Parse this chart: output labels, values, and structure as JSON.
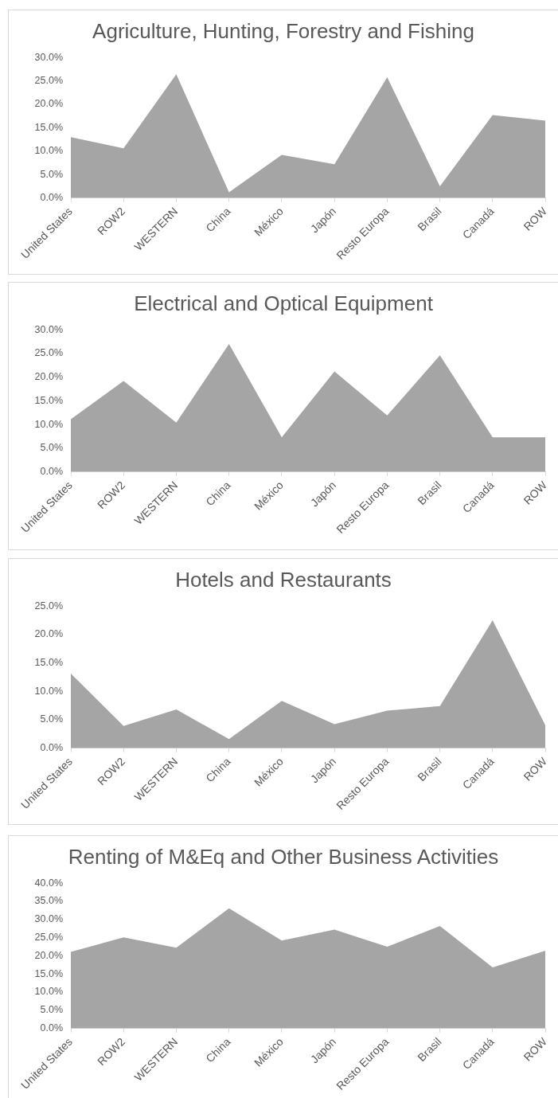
{
  "chart_data": [
    {
      "type": "area",
      "title": "Agriculture, Hunting, Forestry and Fishing",
      "categories": [
        "United States",
        "ROW2",
        "WESTERN",
        "China",
        "México",
        "Japón",
        "Resto Europa",
        "Brasil",
        "Canadá",
        "ROW"
      ],
      "values": [
        13.0,
        10.6,
        26.4,
        1.2,
        9.2,
        7.2,
        25.8,
        2.5,
        17.7,
        16.5
      ],
      "color": "#a5a5a5",
      "ylim": [
        0,
        30
      ],
      "yticks": [
        {
          "value": 0,
          "label": "0.0%"
        },
        {
          "value": 5,
          "label": "5.0%"
        },
        {
          "value": 10,
          "label": "10.0%"
        },
        {
          "value": 15,
          "label": "15.0%"
        },
        {
          "value": 20,
          "label": "20.0%"
        },
        {
          "value": 25,
          "label": "25.0%"
        },
        {
          "value": 30,
          "label": "30.0%"
        }
      ],
      "grid": false,
      "legend": false
    },
    {
      "type": "area",
      "title": "Electrical and Optical Equipment",
      "categories": [
        "United States",
        "ROW2",
        "WESTERN",
        "China",
        "México",
        "Japón",
        "Resto Europa",
        "Brasil",
        "Canadá",
        "ROW"
      ],
      "values": [
        11.1,
        19.2,
        10.4,
        27.0,
        7.3,
        21.2,
        11.9,
        24.6,
        7.3,
        7.3
      ],
      "color": "#a5a5a5",
      "ylim": [
        0,
        30
      ],
      "yticks": [
        {
          "value": 0,
          "label": "0.0%"
        },
        {
          "value": 5,
          "label": "5.0%"
        },
        {
          "value": 10,
          "label": "10.0%"
        },
        {
          "value": 15,
          "label": "15.0%"
        },
        {
          "value": 20,
          "label": "20.0%"
        },
        {
          "value": 25,
          "label": "25.0%"
        },
        {
          "value": 30,
          "label": "30.0%"
        }
      ],
      "grid": false,
      "legend": false
    },
    {
      "type": "area",
      "title": "Hotels and Restaurants",
      "categories": [
        "United States",
        "ROW2",
        "WESTERN",
        "China",
        "México",
        "Japón",
        "Resto Europa",
        "Brasil",
        "Canadá",
        "ROW"
      ],
      "values": [
        13.1,
        3.9,
        6.8,
        1.6,
        8.3,
        4.2,
        6.6,
        7.4,
        22.5,
        4.0
      ],
      "color": "#a5a5a5",
      "ylim": [
        0,
        25
      ],
      "yticks": [
        {
          "value": 0,
          "label": "0.0%"
        },
        {
          "value": 5,
          "label": "5.0%"
        },
        {
          "value": 10,
          "label": "10.0%"
        },
        {
          "value": 15,
          "label": "15.0%"
        },
        {
          "value": 20,
          "label": "20.0%"
        },
        {
          "value": 25,
          "label": "25.0%"
        }
      ],
      "grid": false,
      "legend": false
    },
    {
      "type": "area",
      "title": "Renting of M&Eq and Other Business Activities",
      "categories": [
        "United States",
        "ROW2",
        "WESTERN",
        "China",
        "México",
        "Japón",
        "Resto Europa",
        "Brasil",
        "Canadá",
        "ROW"
      ],
      "values": [
        21.1,
        25.1,
        22.2,
        33.1,
        24.2,
        27.2,
        22.5,
        28.2,
        16.8,
        21.4
      ],
      "color": "#a5a5a5",
      "ylim": [
        0,
        40
      ],
      "yticks": [
        {
          "value": 0,
          "label": "0.0%"
        },
        {
          "value": 5,
          "label": "5.0%"
        },
        {
          "value": 10,
          "label": "10.0%"
        },
        {
          "value": 15,
          "label": "15.0%"
        },
        {
          "value": 20,
          "label": "20.0%"
        },
        {
          "value": 25,
          "label": "25.0%"
        },
        {
          "value": 30,
          "label": "30.0%"
        },
        {
          "value": 35,
          "label": "35.0%"
        },
        {
          "value": 40,
          "label": "40.0%"
        }
      ],
      "grid": false,
      "legend": false
    }
  ]
}
